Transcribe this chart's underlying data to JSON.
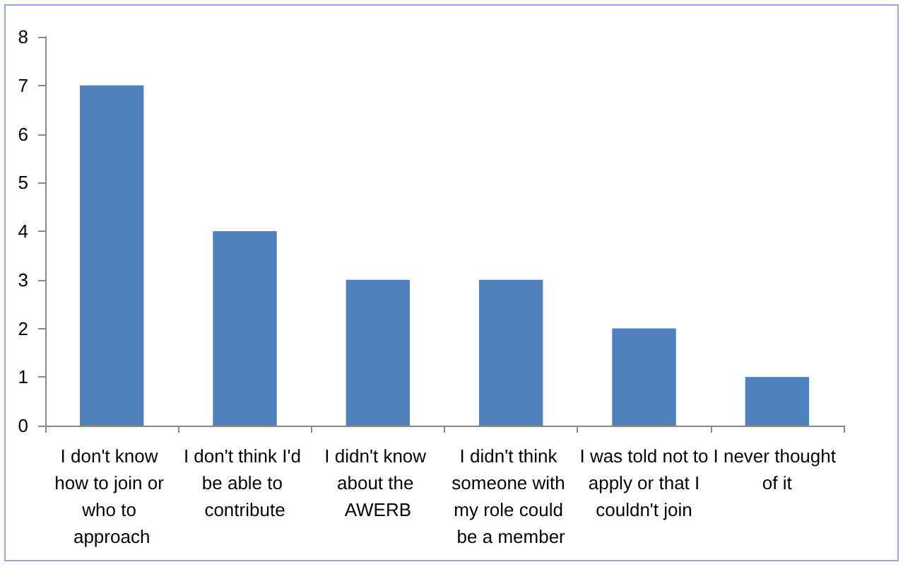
{
  "chart_data": {
    "type": "bar",
    "categories": [
      "I don't know how to join or who to approach",
      "I don't think I'd be able to contribute",
      "I didn't know about the AWERB",
      "I didn't think someone with my role could be a member",
      "I was told not to apply or that I couldn't join",
      "I never thought of it"
    ],
    "values": [
      7,
      4,
      3,
      3,
      2,
      1
    ],
    "color": "#4f81bd",
    "ylim": [
      0,
      8
    ],
    "yticks": [
      0,
      1,
      2,
      3,
      4,
      5,
      6,
      7,
      8
    ],
    "grid": false
  }
}
